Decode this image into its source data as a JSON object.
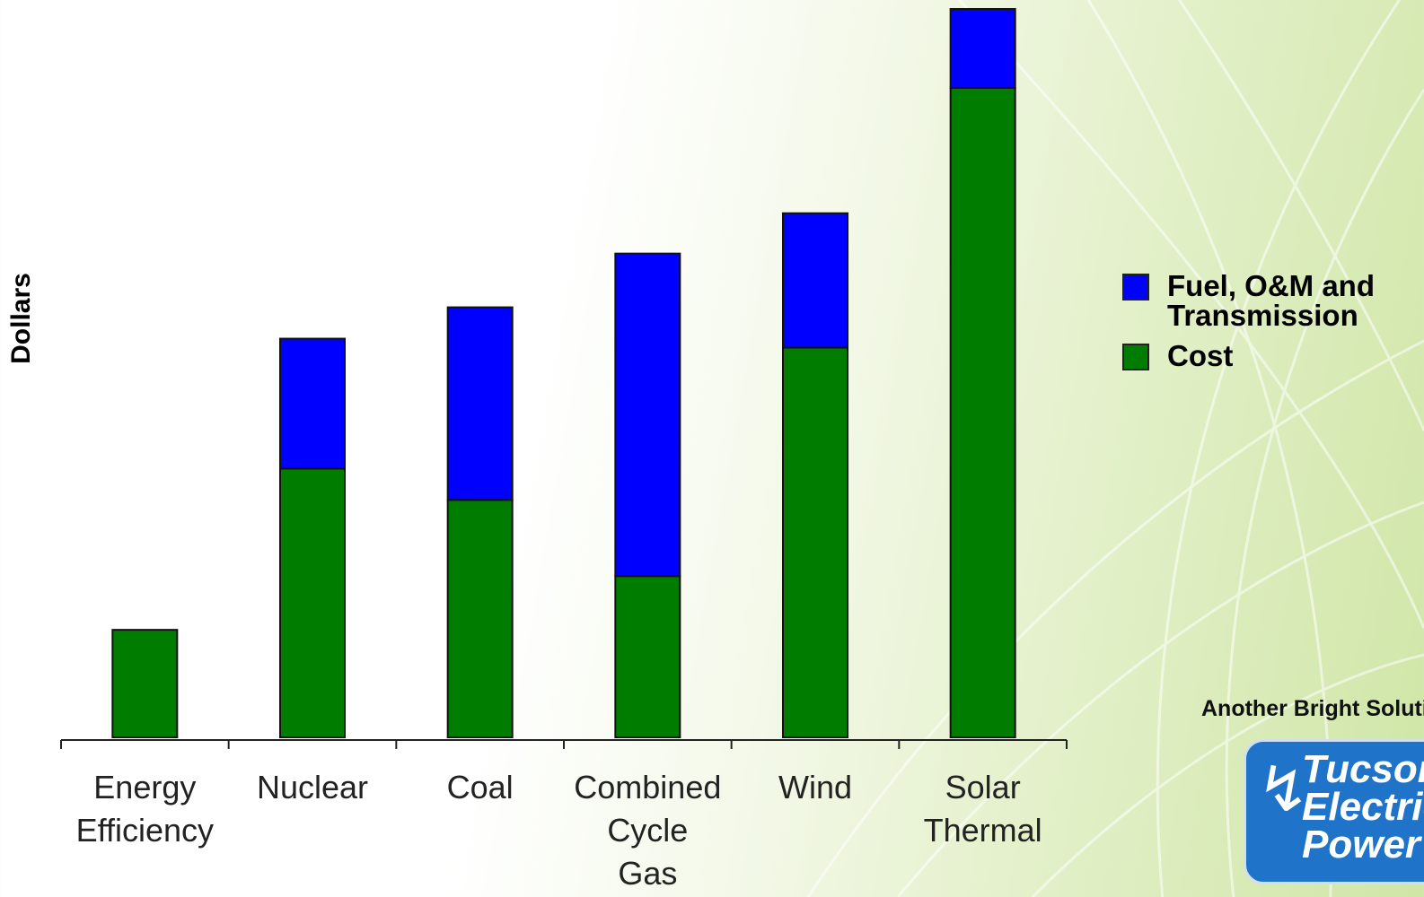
{
  "chart_data": {
    "type": "bar",
    "stacked": true,
    "categories": [
      [
        "Energy",
        "Efficiency"
      ],
      [
        "Nuclear"
      ],
      [
        "Coal"
      ],
      [
        "Combined",
        "Cycle",
        "Gas"
      ],
      [
        "Wind"
      ],
      [
        "Solar",
        "Thermal"
      ]
    ],
    "series": [
      {
        "name": "Cost",
        "values": [
          12,
          30,
          26.5,
          18,
          43.5,
          72.5
        ],
        "color": "#007c00"
      },
      {
        "name": "Fuel, O&M and Transmission",
        "values": [
          0,
          14.5,
          21.5,
          36,
          15,
          8.8
        ],
        "color": "#0000ff"
      }
    ],
    "ylabel": "Dollars",
    "xlabel": "",
    "ylim": [
      0,
      81.3
    ],
    "y_ticks_shown": false,
    "grid": false,
    "legend_placement": "right"
  },
  "legend": {
    "items": [
      {
        "label": "Fuel, O&M and Transmission",
        "color": "#0000ff"
      },
      {
        "label": "Cost",
        "color": "#007c00"
      }
    ]
  },
  "branding": {
    "tagline": "Another Bright Solution",
    "logo_text": "Tucson\nElectric\nPower",
    "logo_color": "#1f74c9"
  }
}
